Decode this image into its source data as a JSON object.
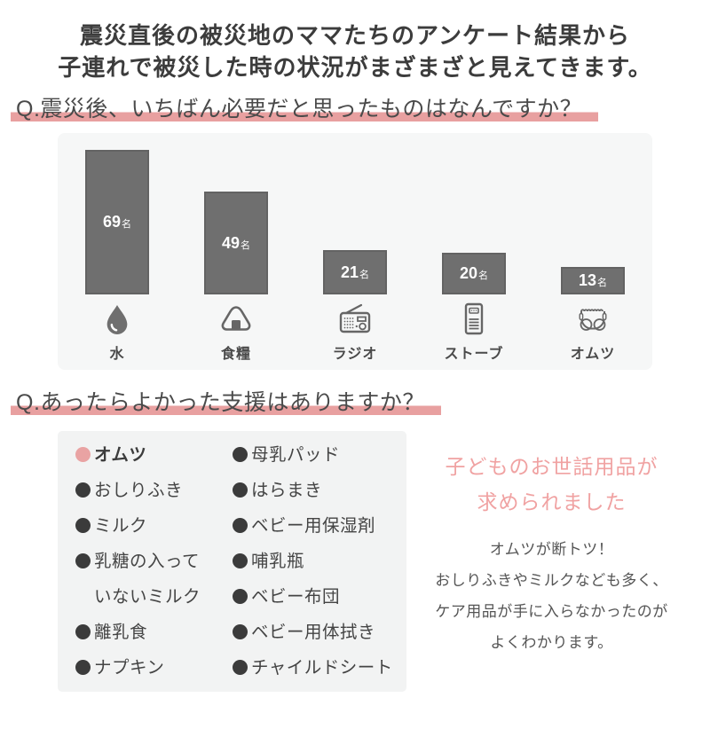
{
  "title": {
    "line1": "震災直後の被災地のママたちのアンケート結果から",
    "line2": "子連れで被災した時の状況がまざまざと見えてきます。"
  },
  "questions": {
    "q1": "Q.震災後、いちばん必要だと思ったものはなんですか？",
    "q2": "Q.あったらよかった支援はありますか？"
  },
  "chart_data": {
    "type": "bar",
    "title": "震災後、いちばん必要だと思ったもの",
    "categories": [
      "水",
      "食糧",
      "ラジオ",
      "ストーブ",
      "オムツ"
    ],
    "values": [
      69,
      49,
      21,
      20,
      13
    ],
    "unit": "名",
    "ylim": [
      0,
      69
    ],
    "grid": false,
    "legend": "none",
    "bar_color": "#6f6f6f",
    "value_label_color": "#ffffff",
    "icons": [
      "water-drop",
      "rice-ball",
      "radio",
      "stove",
      "diaper"
    ]
  },
  "support_list": {
    "left": [
      {
        "label": "オムツ",
        "highlight": true
      },
      {
        "label": "おしりふき",
        "highlight": false
      },
      {
        "label": "ミルク",
        "highlight": false
      },
      {
        "label": "乳糖の入って\nいないミルク",
        "highlight": false
      },
      {
        "label": "離乳食",
        "highlight": false
      },
      {
        "label": "ナプキン",
        "highlight": false
      }
    ],
    "right": [
      {
        "label": "母乳パッド",
        "highlight": false
      },
      {
        "label": "はらまき",
        "highlight": false
      },
      {
        "label": "ベビー用保湿剤",
        "highlight": false
      },
      {
        "label": "哺乳瓶",
        "highlight": false
      },
      {
        "label": "ベビー布団",
        "highlight": false
      },
      {
        "label": "ベビー用体拭き",
        "highlight": false
      },
      {
        "label": "チャイルドシート",
        "highlight": false
      }
    ]
  },
  "summary": {
    "heading_line1": "子どものお世話用品が",
    "heading_line2": "求められました",
    "body_lines": [
      "オムツが断トツ！",
      "おしりふきやミルクなども多く、",
      "ケア用品が手に入らなかったのが",
      "よくわかります。"
    ]
  },
  "colors": {
    "highlight_pink": "#e8a0a0",
    "bullet_pink": "#e9a3a3",
    "summary_pink": "#f0a2a2",
    "bar_gray": "#6f6f6f",
    "list_panel_gray": "#f2f3f3",
    "chart_panel_gray": "#f6f7f7",
    "text_dark": "#3c3c3c",
    "text_body": "#555555"
  }
}
